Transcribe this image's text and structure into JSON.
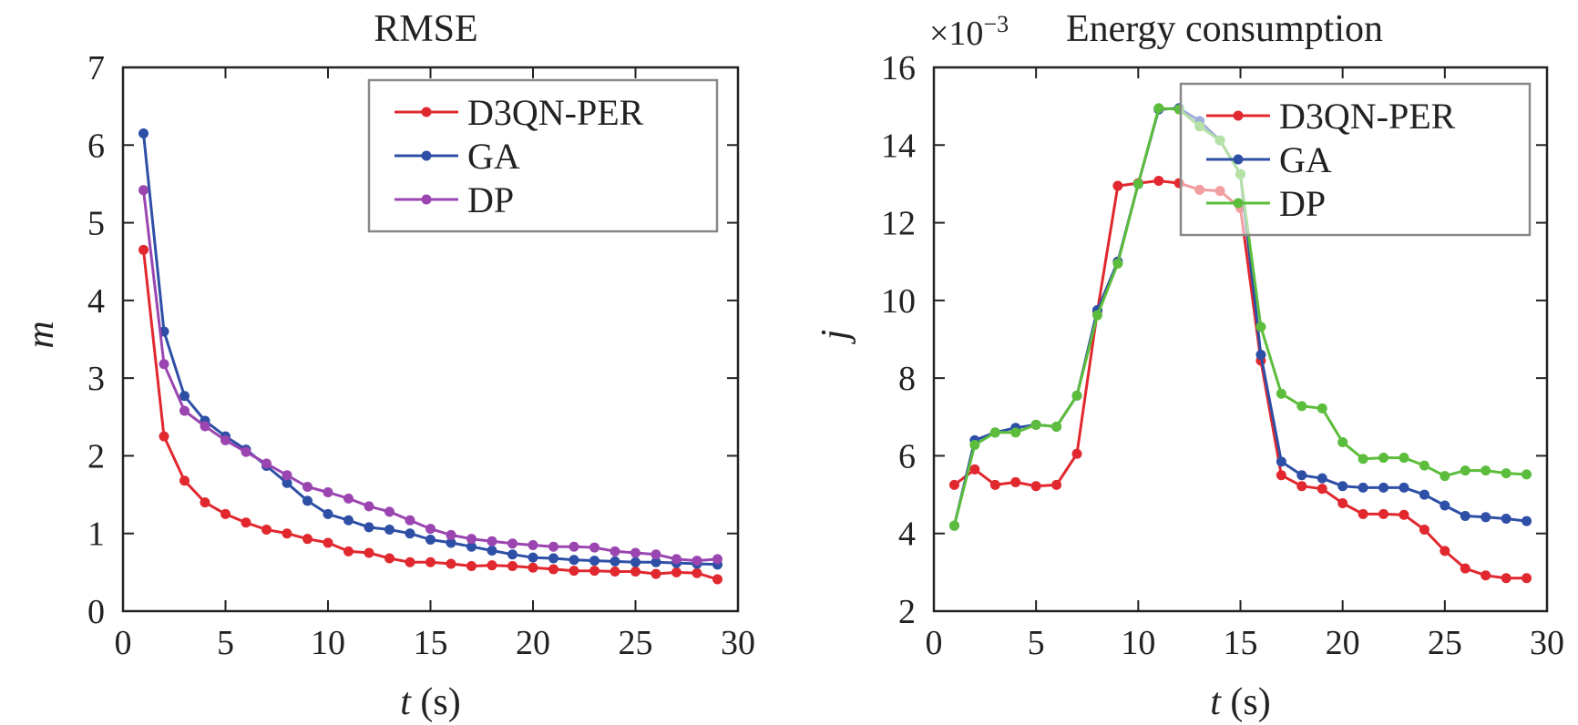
{
  "chart_data": [
    {
      "type": "line",
      "title": "RMSE",
      "xlabel_var": "t",
      "xlabel_unit": " (s)",
      "ylabel": "m",
      "xlim": [
        0,
        30
      ],
      "ylim": [
        0,
        7
      ],
      "xticks": [
        "0",
        "5",
        "10",
        "15",
        "20",
        "25",
        "30"
      ],
      "yticks": [
        "0",
        "1",
        "2",
        "3",
        "4",
        "5",
        "6",
        "7"
      ],
      "grid": false,
      "legend_position": "top-right",
      "x": [
        1,
        2,
        3,
        4,
        5,
        6,
        7,
        8,
        9,
        10,
        11,
        12,
        13,
        14,
        15,
        16,
        17,
        18,
        19,
        20,
        21,
        22,
        23,
        24,
        25,
        26,
        27,
        28,
        29
      ],
      "series": [
        {
          "name": "D3QN-PER",
          "color": "#e0282e",
          "values": [
            4.65,
            2.25,
            1.68,
            1.4,
            1.25,
            1.14,
            1.05,
            1.0,
            0.93,
            0.88,
            0.77,
            0.75,
            0.68,
            0.63,
            0.63,
            0.61,
            0.58,
            0.59,
            0.58,
            0.56,
            0.54,
            0.52,
            0.52,
            0.51,
            0.51,
            0.48,
            0.5,
            0.49,
            0.41
          ]
        },
        {
          "name": "GA",
          "color": "#2e4fa6",
          "values": [
            6.15,
            3.6,
            2.77,
            2.45,
            2.25,
            2.08,
            1.87,
            1.65,
            1.42,
            1.25,
            1.17,
            1.08,
            1.05,
            1.0,
            0.92,
            0.88,
            0.83,
            0.78,
            0.73,
            0.69,
            0.68,
            0.66,
            0.65,
            0.64,
            0.63,
            0.63,
            0.62,
            0.61,
            0.6
          ]
        },
        {
          "name": "DP",
          "color": "#9a45b0",
          "values": [
            5.42,
            3.18,
            2.58,
            2.38,
            2.2,
            2.05,
            1.9,
            1.75,
            1.6,
            1.53,
            1.45,
            1.35,
            1.28,
            1.17,
            1.06,
            0.98,
            0.93,
            0.9,
            0.87,
            0.85,
            0.83,
            0.83,
            0.82,
            0.77,
            0.75,
            0.73,
            0.67,
            0.65,
            0.67
          ]
        }
      ]
    },
    {
      "type": "line",
      "title": "Energy consumption",
      "multiplier_base": "×10",
      "multiplier_exp": "−3",
      "xlabel_var": "t",
      "xlabel_unit": " (s)",
      "ylabel": "j",
      "xlim": [
        0,
        30
      ],
      "ylim": [
        2,
        16
      ],
      "xticks": [
        "0",
        "5",
        "10",
        "15",
        "20",
        "25",
        "30"
      ],
      "yticks": [
        "2",
        "4",
        "6",
        "8",
        "10",
        "12",
        "14",
        "16"
      ],
      "grid": false,
      "legend_position": "top-right",
      "x": [
        1,
        2,
        3,
        4,
        5,
        6,
        7,
        8,
        9,
        10,
        11,
        12,
        13,
        14,
        15,
        16,
        17,
        18,
        19,
        20,
        21,
        22,
        23,
        24,
        25,
        26,
        27,
        28,
        29
      ],
      "series": [
        {
          "name": "D3QN-PER",
          "color": "#e0282e",
          "values": [
            5.25,
            5.65,
            5.25,
            5.32,
            5.22,
            5.25,
            6.05,
            9.72,
            12.95,
            13.02,
            13.08,
            13.02,
            12.85,
            12.82,
            12.38,
            8.45,
            5.5,
            5.22,
            5.15,
            4.78,
            4.5,
            4.5,
            4.48,
            4.1,
            3.55,
            3.1,
            2.92,
            2.85,
            2.85
          ]
        },
        {
          "name": "GA",
          "color": "#2e4fa6",
          "values": [
            4.2,
            6.4,
            6.6,
            6.72,
            6.8,
            6.75,
            7.55,
            9.75,
            11.0,
            13.0,
            14.92,
            14.95,
            14.62,
            14.12,
            13.25,
            8.6,
            5.85,
            5.5,
            5.42,
            5.22,
            5.18,
            5.18,
            5.18,
            5.0,
            4.72,
            4.45,
            4.42,
            4.38,
            4.32
          ]
        },
        {
          "name": "DP",
          "color": "#5cbd3c",
          "values": [
            4.2,
            6.28,
            6.6,
            6.6,
            6.8,
            6.75,
            7.55,
            9.62,
            10.95,
            13.0,
            14.95,
            14.92,
            14.48,
            14.12,
            13.25,
            9.32,
            7.6,
            7.28,
            7.22,
            6.35,
            5.92,
            5.95,
            5.95,
            5.75,
            5.48,
            5.62,
            5.62,
            5.55,
            5.52
          ]
        }
      ]
    }
  ]
}
